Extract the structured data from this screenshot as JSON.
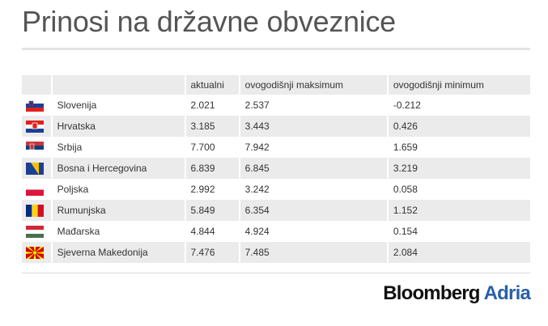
{
  "title": "Prinosi na državne obveznice",
  "table": {
    "columns": [
      "aktualni",
      "ovogodišnji maksimum",
      "ovogodišnji minimum"
    ],
    "rows": [
      [
        "Slovenija",
        "2.021",
        "2.537",
        "-0.212"
      ],
      [
        "Hrvatska",
        "3.185",
        "3.443",
        "0.426"
      ],
      [
        "Srbija",
        "7.700",
        "7.942",
        "1.659"
      ],
      [
        "Bosna i Hercegovina",
        "6.839",
        "6.845",
        "3.219"
      ],
      [
        "Poljska",
        "2.992",
        "3.242",
        "0.058"
      ],
      [
        "Rumunjska",
        "5.849",
        "6.354",
        "1.152"
      ],
      [
        "Mađarska",
        "4.844",
        "4.924",
        "0.154"
      ],
      [
        "Sjeverna Makedonija",
        "7.476",
        "7.485",
        "2.084"
      ]
    ]
  },
  "logo": {
    "brand": "Bloomberg",
    "sub": "Adria"
  }
}
